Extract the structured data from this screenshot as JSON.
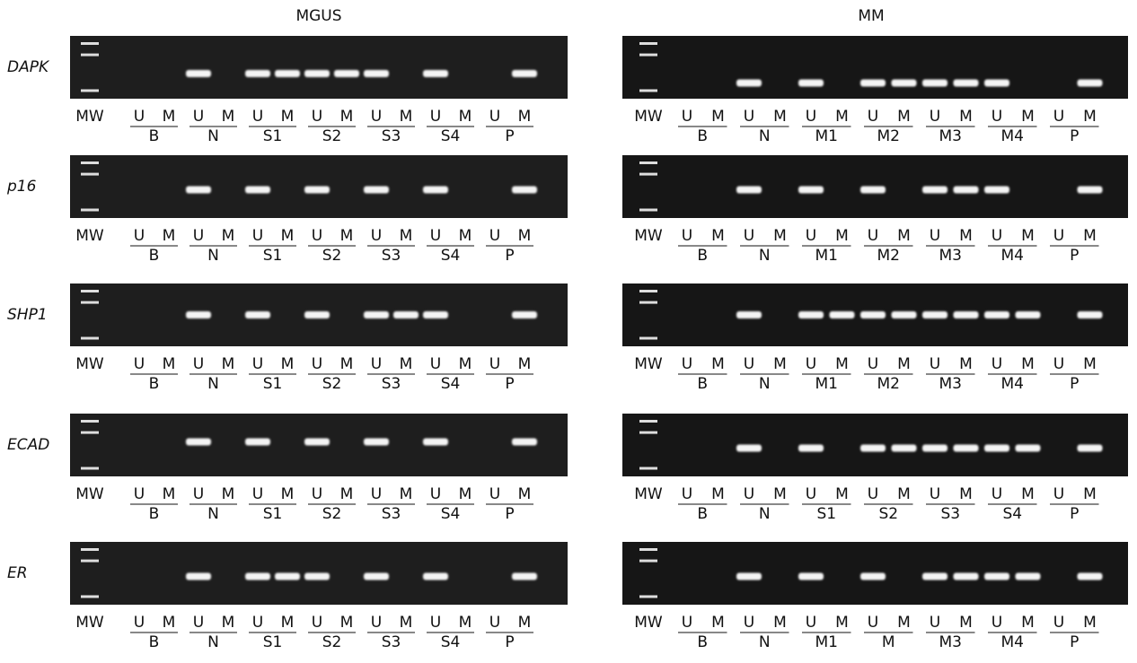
{
  "columns": [
    {
      "title": "MGUS",
      "gels": [
        {
          "gene": "DAPK",
          "mw": "MW",
          "groups": [
            {
              "name": "B",
              "lanes": [
                "U",
                "M"
              ]
            },
            {
              "name": "N",
              "lanes": [
                "U",
                "M"
              ]
            },
            {
              "name": "S1",
              "lanes": [
                "U",
                "M"
              ]
            },
            {
              "name": "S2",
              "lanes": [
                "U",
                "M"
              ]
            },
            {
              "name": "S3",
              "lanes": [
                "U",
                "M"
              ]
            },
            {
              "name": "S4",
              "lanes": [
                "U",
                "M"
              ]
            },
            {
              "name": "P",
              "lanes": [
                "U",
                "M"
              ]
            }
          ]
        },
        {
          "gene": "p16",
          "mw": "MW",
          "groups": [
            {
              "name": "B",
              "lanes": [
                "U",
                "M"
              ]
            },
            {
              "name": "N",
              "lanes": [
                "U",
                "M"
              ]
            },
            {
              "name": "S1",
              "lanes": [
                "U",
                "M"
              ]
            },
            {
              "name": "S2",
              "lanes": [
                "U",
                "M"
              ]
            },
            {
              "name": "S3",
              "lanes": [
                "U",
                "M"
              ]
            },
            {
              "name": "S4",
              "lanes": [
                "U",
                "M"
              ]
            },
            {
              "name": "P",
              "lanes": [
                "U",
                "M"
              ]
            }
          ]
        },
        {
          "gene": "SHP1",
          "mw": "MW",
          "groups": [
            {
              "name": "B",
              "lanes": [
                "U",
                "M"
              ]
            },
            {
              "name": "N",
              "lanes": [
                "U",
                "M"
              ]
            },
            {
              "name": "S1",
              "lanes": [
                "U",
                "M"
              ]
            },
            {
              "name": "S2",
              "lanes": [
                "U",
                "M"
              ]
            },
            {
              "name": "S3",
              "lanes": [
                "U",
                "M"
              ]
            },
            {
              "name": "S4",
              "lanes": [
                "U",
                "M"
              ]
            },
            {
              "name": "P",
              "lanes": [
                "U",
                "M"
              ]
            }
          ]
        },
        {
          "gene": "ECAD",
          "mw": "MW",
          "groups": [
            {
              "name": "B",
              "lanes": [
                "U",
                "M"
              ]
            },
            {
              "name": "N",
              "lanes": [
                "U",
                "M"
              ]
            },
            {
              "name": "S1",
              "lanes": [
                "U",
                "M"
              ]
            },
            {
              "name": "S2",
              "lanes": [
                "U",
                "M"
              ]
            },
            {
              "name": "S3",
              "lanes": [
                "U",
                "M"
              ]
            },
            {
              "name": "S4",
              "lanes": [
                "U",
                "M"
              ]
            },
            {
              "name": "P",
              "lanes": [
                "U",
                "M"
              ]
            }
          ]
        },
        {
          "gene": "ER",
          "mw": "MW",
          "groups": [
            {
              "name": "B",
              "lanes": [
                "U",
                "M"
              ]
            },
            {
              "name": "N",
              "lanes": [
                "U",
                "M"
              ]
            },
            {
              "name": "S1",
              "lanes": [
                "U",
                "M"
              ]
            },
            {
              "name": "S2",
              "lanes": [
                "U",
                "M"
              ]
            },
            {
              "name": "S3",
              "lanes": [
                "U",
                "M"
              ]
            },
            {
              "name": "S4",
              "lanes": [
                "U",
                "M"
              ]
            },
            {
              "name": "P",
              "lanes": [
                "U",
                "M"
              ]
            }
          ]
        }
      ]
    },
    {
      "title": "MM",
      "gels": [
        {
          "mw": "MW",
          "groups": [
            {
              "name": "B",
              "lanes": [
                "U",
                "M"
              ]
            },
            {
              "name": "N",
              "lanes": [
                "U",
                "M"
              ]
            },
            {
              "name": "M1",
              "lanes": [
                "U",
                "M"
              ]
            },
            {
              "name": "M2",
              "lanes": [
                "U",
                "M"
              ]
            },
            {
              "name": "M3",
              "lanes": [
                "U",
                "M"
              ]
            },
            {
              "name": "M4",
              "lanes": [
                "U",
                "M"
              ]
            },
            {
              "name": "P",
              "lanes": [
                "U",
                "M"
              ]
            }
          ]
        },
        {
          "mw": "MW",
          "groups": [
            {
              "name": "B",
              "lanes": [
                "U",
                "M"
              ]
            },
            {
              "name": "N",
              "lanes": [
                "U",
                "M"
              ]
            },
            {
              "name": "M1",
              "lanes": [
                "U",
                "M"
              ]
            },
            {
              "name": "M2",
              "lanes": [
                "U",
                "M"
              ]
            },
            {
              "name": "M3",
              "lanes": [
                "U",
                "M"
              ]
            },
            {
              "name": "M4",
              "lanes": [
                "U",
                "M"
              ]
            },
            {
              "name": "P",
              "lanes": [
                "U",
                "M"
              ]
            }
          ]
        },
        {
          "mw": "MW",
          "groups": [
            {
              "name": "B",
              "lanes": [
                "U",
                "M"
              ]
            },
            {
              "name": "N",
              "lanes": [
                "U",
                "M"
              ]
            },
            {
              "name": "M1",
              "lanes": [
                "U",
                "M"
              ]
            },
            {
              "name": "M2",
              "lanes": [
                "U",
                "M"
              ]
            },
            {
              "name": "M3",
              "lanes": [
                "U",
                "M"
              ]
            },
            {
              "name": "M4",
              "lanes": [
                "U",
                "M"
              ]
            },
            {
              "name": "P",
              "lanes": [
                "U",
                "M"
              ]
            }
          ]
        },
        {
          "mw": "MW",
          "groups": [
            {
              "name": "B",
              "lanes": [
                "U",
                "M"
              ]
            },
            {
              "name": "N",
              "lanes": [
                "U",
                "M"
              ]
            },
            {
              "name": "S1",
              "lanes": [
                "U",
                "M"
              ]
            },
            {
              "name": "S2",
              "lanes": [
                "U",
                "M"
              ]
            },
            {
              "name": "S3",
              "lanes": [
                "U",
                "M"
              ]
            },
            {
              "name": "S4",
              "lanes": [
                "U",
                "M"
              ]
            },
            {
              "name": "P",
              "lanes": [
                "U",
                "M"
              ]
            }
          ]
        },
        {
          "mw": "MW",
          "groups": [
            {
              "name": "B",
              "lanes": [
                "U",
                "M"
              ]
            },
            {
              "name": "N",
              "lanes": [
                "U",
                "M"
              ]
            },
            {
              "name": "M1",
              "lanes": [
                "U",
                "M"
              ]
            },
            {
              "name": "M",
              "lanes": [
                "U",
                "M"
              ]
            },
            {
              "name": "M3",
              "lanes": [
                "U",
                "M"
              ]
            },
            {
              "name": "M4",
              "lanes": [
                "U",
                "M"
              ]
            },
            {
              "name": "P",
              "lanes": [
                "U",
                "M"
              ]
            }
          ]
        }
      ]
    }
  ]
}
